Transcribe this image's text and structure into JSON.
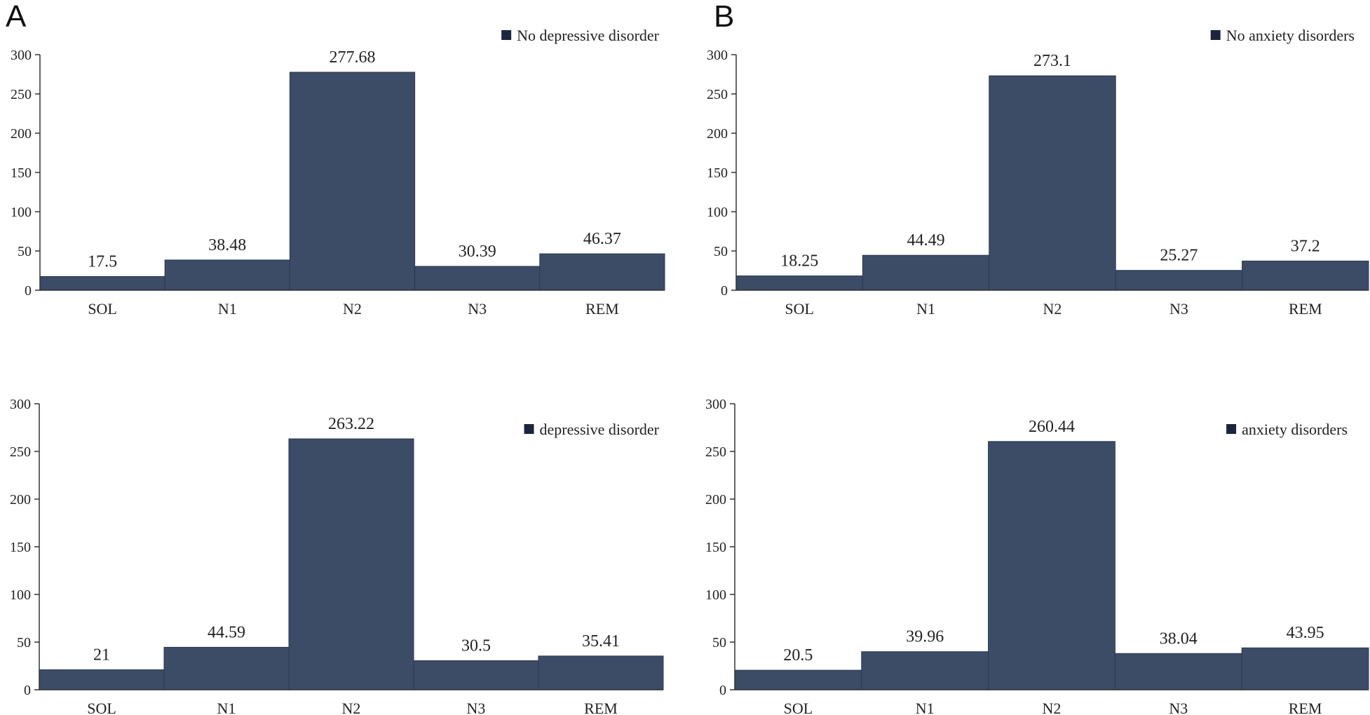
{
  "panel_letters": {
    "A": "A",
    "B": "B"
  },
  "chart_data": [
    {
      "id": "A-top",
      "type": "bar",
      "panel": "A",
      "legend": "No depressive disorder",
      "legend_position": "top-right",
      "categories": [
        "SOL",
        "N1",
        "N2",
        "N3",
        "REM"
      ],
      "values": [
        17.5,
        38.48,
        277.68,
        30.39,
        46.37
      ],
      "value_labels": [
        "17.5",
        "38.48",
        "277.68",
        "30.39",
        "46.37"
      ],
      "yticks": [
        "0",
        "50",
        "100",
        "150",
        "200",
        "250",
        "300"
      ],
      "ylim": [
        0,
        300
      ],
      "color": "#3c4b66"
    },
    {
      "id": "B-top",
      "type": "bar",
      "panel": "B",
      "legend": "No anxiety disorders",
      "legend_position": "top-right",
      "categories": [
        "SOL",
        "N1",
        "N2",
        "N3",
        "REM"
      ],
      "values": [
        18.25,
        44.49,
        273.1,
        25.27,
        37.2
      ],
      "value_labels": [
        "18.25",
        "44.49",
        "273.1",
        "25.27",
        "37.2"
      ],
      "yticks": [
        "0",
        "50",
        "100",
        "150",
        "200",
        "250",
        "300"
      ],
      "ylim": [
        0,
        300
      ],
      "color": "#3c4b66"
    },
    {
      "id": "A-bottom",
      "type": "bar",
      "panel": "A",
      "legend": "depressive disorder",
      "legend_position": "top-right",
      "categories": [
        "SOL",
        "N1",
        "N2",
        "N3",
        "REM"
      ],
      "values": [
        21,
        44.59,
        263.22,
        30.5,
        35.41
      ],
      "value_labels": [
        "21",
        "44.59",
        "263.22",
        "30.5",
        "35.41"
      ],
      "yticks": [
        "0",
        "50",
        "100",
        "150",
        "200",
        "250",
        "300"
      ],
      "ylim": [
        0,
        300
      ],
      "color": "#3c4b66"
    },
    {
      "id": "B-bottom",
      "type": "bar",
      "panel": "B",
      "legend": "anxiety disorders",
      "legend_position": "top-right",
      "categories": [
        "SOL",
        "N1",
        "N2",
        "N3",
        "REM"
      ],
      "values": [
        20.5,
        39.96,
        260.44,
        38.04,
        43.95
      ],
      "value_labels": [
        "20.5",
        "39.96",
        "260.44",
        "38.04",
        "43.95"
      ],
      "yticks": [
        "0",
        "50",
        "100",
        "150",
        "200",
        "250",
        "300"
      ],
      "ylim": [
        0,
        300
      ],
      "color": "#3c4b66"
    }
  ]
}
